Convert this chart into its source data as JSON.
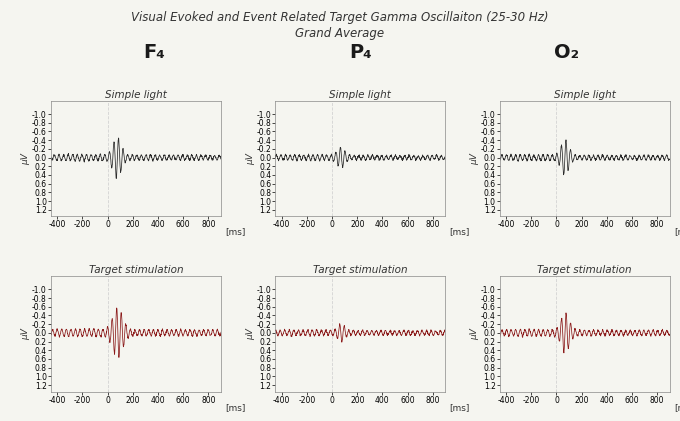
{
  "title_line1": "Visual Evoked and Event Related Target Gamma Oscillaiton (25-30 Hz)",
  "title_line2": "Grand Average",
  "electrodes": [
    "F₄",
    "P₄",
    "O₂"
  ],
  "simple_light_label": "Simple light",
  "target_label": "Target stimulation",
  "ms_label": "[ms]",
  "ylabel": "μV",
  "xlim": [
    -450,
    900
  ],
  "xticks": [
    -400,
    -200,
    0,
    200,
    400,
    600,
    800
  ],
  "xtick_labels": [
    "-400",
    "-200",
    "0",
    "200",
    "400",
    "600",
    "800"
  ],
  "ytick_vals": [
    -1.0,
    -0.8,
    -0.6,
    -0.4,
    -0.2,
    0.0,
    0.2,
    0.4,
    0.6,
    0.8,
    1.0,
    1.2
  ],
  "ytick_labels": [
    "-1.0",
    "-0.8",
    "-0.6",
    "-0.4",
    "-0.2",
    "0.0",
    "0.2",
    "0.4",
    "0.6",
    "0.8",
    "1.0",
    "1.2"
  ],
  "ylim_data": [
    -1.3,
    1.35
  ],
  "vline_x": 0,
  "simple_color": "#2a2a2a",
  "target_color": "#8B1A1A",
  "bg_color": "#f5f5f0",
  "plot_bg": "#f5f5f0",
  "line_width": 0.55,
  "title_fontsize": 8.5,
  "electrode_fontsize": 14,
  "sublabel_fontsize": 7.5,
  "tick_fontsize": 5.5,
  "ms_fontsize": 6.5,
  "ylabel_fontsize": 6.5
}
